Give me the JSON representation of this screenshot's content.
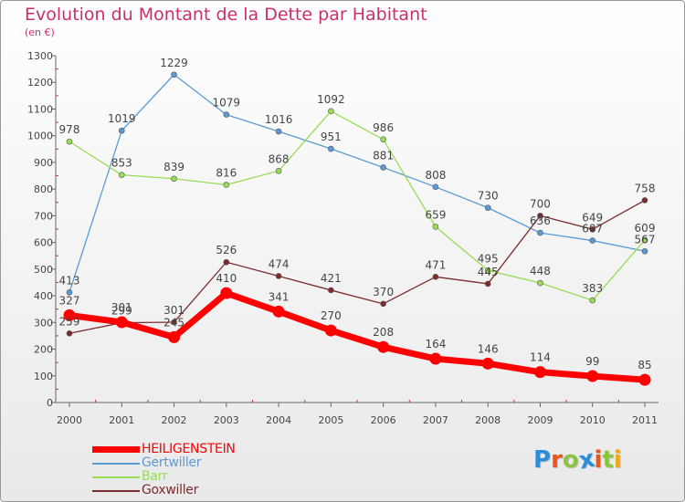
{
  "header": {
    "title": "Evolution du Montant de la Dette par Habitant",
    "subtitle": "(en €)"
  },
  "brand": {
    "text": "Proxiti",
    "letter_colors": [
      "#2a8fd8",
      "#e8551e",
      "#8bc53f",
      "#2a8fd8",
      "#e8551e",
      "#8bc53f",
      "#f2a81d"
    ]
  },
  "chart_data": {
    "type": "line",
    "title": "Evolution du Montant de la Dette par Habitant",
    "subtitle": "(en €)",
    "categories": [
      "2000",
      "2001",
      "2002",
      "2003",
      "2004",
      "2005",
      "2006",
      "2007",
      "2008",
      "2009",
      "2010",
      "2011"
    ],
    "ylim": [
      0,
      1300
    ],
    "yticks": [
      0,
      100,
      200,
      300,
      400,
      500,
      600,
      700,
      800,
      900,
      1000,
      1100,
      1200,
      1300
    ],
    "grid": false,
    "legend_position": "bottom-left",
    "series": [
      {
        "name": "HEILIGENSTEIN",
        "color": "#ff0000",
        "values": [
          327,
          301,
          245,
          410,
          341,
          270,
          208,
          164,
          146,
          114,
          99,
          85
        ]
      },
      {
        "name": "Gertwiller",
        "color": "#5b9bd5",
        "values": [
          413,
          1019,
          1229,
          1079,
          1016,
          951,
          881,
          808,
          730,
          636,
          607,
          567
        ]
      },
      {
        "name": "Barr",
        "color": "#99dd55",
        "values": [
          978,
          853,
          839,
          816,
          868,
          1092,
          986,
          659,
          495,
          448,
          383,
          609
        ]
      },
      {
        "name": "Goxwiller",
        "color": "#7b2c2c",
        "values": [
          259,
          299,
          301,
          526,
          474,
          421,
          370,
          471,
          445,
          700,
          649,
          758
        ]
      }
    ]
  }
}
